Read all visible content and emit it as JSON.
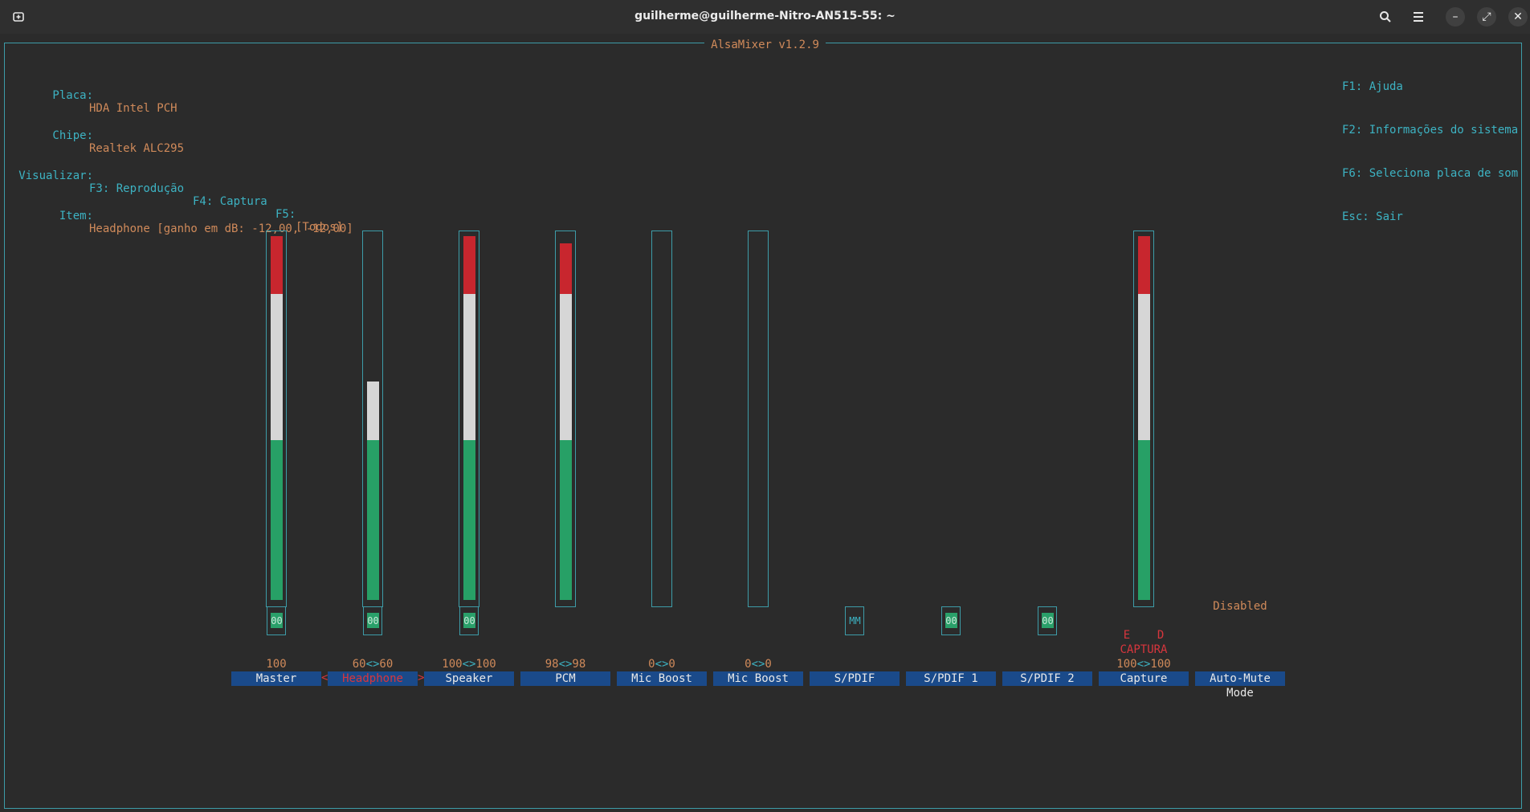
{
  "window": {
    "title": "guilherme@guilherme-Nitro-AN515-55: ~",
    "new_tab_icon": "new-tab-icon",
    "search_icon": "search-icon",
    "menu_icon": "hamburger-menu-icon",
    "minimize_glyph": "–",
    "maximize_glyph": "⤢",
    "close_glyph": "✕"
  },
  "app": {
    "title": "AlsaMixer v1.2.9"
  },
  "info": {
    "card_label": "Placa:",
    "card_value": "HDA Intel PCH",
    "chip_label": "Chipe:",
    "chip_value": "Realtek ALC295",
    "view_label": "Visualizar:",
    "view_f3": "F3: Reprodução",
    "view_f4": "F4: Captura",
    "view_f5_key": "F5:",
    "view_f5_value": "[Todos]",
    "item_label": "Item:",
    "item_value": "Headphone [ganho em dB: -12,00, -12,00]"
  },
  "help": {
    "f1": "F1: Ajuda",
    "f2": "F2: Informações do sistema",
    "f6": "F6: Seleciona placa de som",
    "esc": "Esc: Sair"
  },
  "colors": {
    "border": "#3d9ca8",
    "high": "#c8262e",
    "mid": "#d6d6d6",
    "low": "#27a066",
    "label_bg": "#1a4a8a"
  },
  "channels": [
    {
      "name": "Master",
      "value_left": "100",
      "value_sep": "",
      "value_right": "",
      "level": 1.0,
      "has_slider": true,
      "mute": "00",
      "mute_active": true
    },
    {
      "name": "Headphone",
      "value_left": "60",
      "value_sep": "<>",
      "value_right": "60",
      "level": 0.6,
      "has_slider": true,
      "mute": "00",
      "mute_active": true,
      "selected": true
    },
    {
      "name": "Speaker",
      "value_left": "100",
      "value_sep": "<>",
      "value_right": "100",
      "level": 1.0,
      "has_slider": true,
      "mute": "00",
      "mute_active": true
    },
    {
      "name": "PCM",
      "value_left": "98",
      "value_sep": "<>",
      "value_right": "98",
      "level": 0.98,
      "has_slider": true,
      "mute": "",
      "mute_active": false
    },
    {
      "name": "Mic Boost",
      "value_left": "0",
      "value_sep": "<>",
      "value_right": "0",
      "level": 0,
      "has_slider": true,
      "mute": "",
      "mute_active": false
    },
    {
      "name": "Mic Boost",
      "value_left": "0",
      "value_sep": "<>",
      "value_right": "0",
      "level": 0,
      "has_slider": true,
      "mute": "",
      "mute_active": false
    },
    {
      "name": "S/PDIF",
      "value_left": "",
      "value_sep": "",
      "value_right": "",
      "level": 0,
      "has_slider": false,
      "mute": "MM",
      "mute_active": false
    },
    {
      "name": "S/PDIF 1",
      "value_left": "",
      "value_sep": "",
      "value_right": "",
      "level": 0,
      "has_slider": false,
      "mute": "00",
      "mute_active": true
    },
    {
      "name": "S/PDIF 2",
      "value_left": "",
      "value_sep": "",
      "value_right": "",
      "level": 0,
      "has_slider": false,
      "mute": "00",
      "mute_active": true
    },
    {
      "name": "Capture",
      "value_left": "100",
      "value_sep": "<>",
      "value_right": "100",
      "level": 1.0,
      "has_slider": true,
      "mute": "",
      "mute_active": false,
      "capture_flags": "E    D",
      "capture_label": "CAPTURA"
    },
    {
      "name": "Auto-Mute Mode",
      "value_left": "",
      "value_sep": "",
      "value_right": "",
      "level": 0,
      "has_slider": false,
      "mute": "",
      "mute_active": false,
      "enum_value": "Disabled"
    }
  ],
  "selection_arrows": {
    "left": "<",
    "right": ">"
  }
}
